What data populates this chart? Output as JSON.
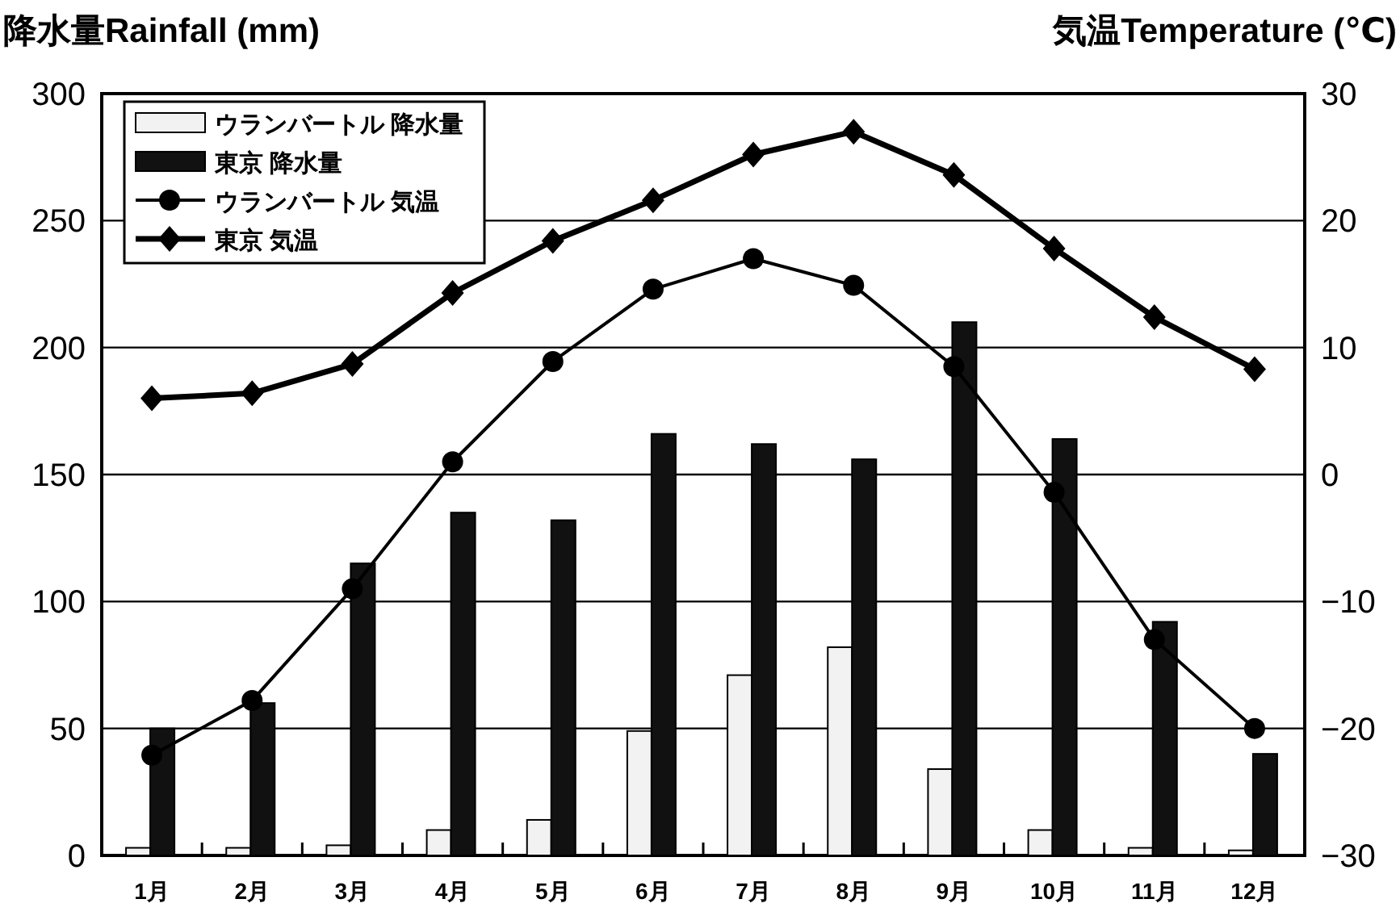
{
  "chart_data": {
    "type": "bar",
    "ylabel": "降水量Rainfall (mm)",
    "y2label": "気温Temperature (℃)",
    "categories": [
      "1月",
      "2月",
      "3月",
      "4月",
      "5月",
      "6月",
      "7月",
      "8月",
      "9月",
      "10月",
      "11月",
      "12月"
    ],
    "series": [
      {
        "name": "ウランバートル 降水量",
        "color": "#f2f2f2",
        "values": [
          3,
          3,
          4,
          10,
          14,
          49,
          71,
          82,
          34,
          10,
          3,
          2
        ]
      },
      {
        "name": "東京 降水量",
        "color": "#111111",
        "values": [
          50,
          60,
          115,
          135,
          132,
          166,
          162,
          156,
          210,
          164,
          92,
          40
        ]
      },
      {
        "name": "ウランバートル 気温",
        "type": "line",
        "axis": "y2",
        "marker": "circle",
        "color": "#000000",
        "values": [
          -22.1,
          -17.8,
          -9.0,
          1.0,
          8.9,
          14.6,
          17.0,
          14.9,
          8.5,
          -1.4,
          -13.0,
          -20.0
        ]
      },
      {
        "name": "東京 気温",
        "type": "line",
        "axis": "y2",
        "marker": "diamond",
        "color": "#000000",
        "values": [
          6.0,
          6.4,
          8.7,
          14.3,
          18.4,
          21.6,
          25.2,
          27.0,
          23.6,
          17.8,
          12.4,
          8.3
        ]
      }
    ],
    "ylim": [
      0,
      300
    ],
    "yticks": [
      0,
      50,
      100,
      150,
      200,
      250,
      300
    ],
    "y2lim": [
      -30,
      30
    ],
    "y2ticks": [
      -30,
      -20,
      -10,
      0,
      10,
      20,
      30
    ],
    "grid": "y",
    "legend": "top left"
  }
}
